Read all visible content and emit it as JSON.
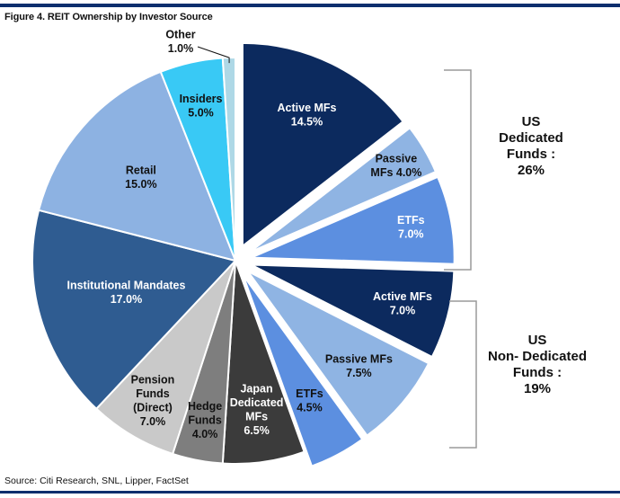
{
  "figure": {
    "title": "Figure 4. REIT Ownership by Investor Source",
    "source": "Source: Citi Research, SNL, Lipper, FactSet"
  },
  "chart_data": {
    "type": "pie",
    "title": "Figure 4. REIT Ownership by Investor Source",
    "unit": "%",
    "slices": [
      {
        "label": "Active MFs",
        "value": 14.5,
        "display": "14.5%",
        "color": "#0c2a5e",
        "text_color": "#ffffff",
        "exploded": true
      },
      {
        "label": "Passive MFs",
        "value": 4.0,
        "display": "4.0%",
        "color": "#8fb4e3",
        "text_color": "#111111",
        "exploded": true
      },
      {
        "label": "ETFs",
        "value": 7.0,
        "display": "7.0%",
        "color": "#5c8fe0",
        "text_color": "#ffffff",
        "exploded": true
      },
      {
        "label": "Active MFs",
        "value": 7.0,
        "display": "7.0%",
        "color": "#0c2a5e",
        "text_color": "#ffffff",
        "exploded": true
      },
      {
        "label": "Passive MFs",
        "value": 7.5,
        "display": "7.5%",
        "color": "#8fb4e3",
        "text_color": "#111111",
        "exploded": true
      },
      {
        "label": "ETFs",
        "value": 4.5,
        "display": "4.5%",
        "color": "#5c8fe0",
        "text_color": "#111111",
        "exploded": true
      },
      {
        "label": "Japan Dedicated MFs",
        "value": 6.5,
        "display": "6.5%",
        "color": "#3b3b3b",
        "text_color": "#ffffff",
        "exploded": false
      },
      {
        "label": "Hedge Funds",
        "value": 4.0,
        "display": "4.0%",
        "color": "#7e7e7e",
        "text_color": "#111111",
        "exploded": false
      },
      {
        "label": "Pension Funds (Direct)",
        "value": 7.0,
        "display": "7.0%",
        "color": "#c9c9c9",
        "text_color": "#111111",
        "exploded": false
      },
      {
        "label": "Institutional Mandates",
        "value": 17.0,
        "display": "17.0%",
        "color": "#2f5c91",
        "text_color": "#ffffff",
        "exploded": false
      },
      {
        "label": "Retail",
        "value": 15.0,
        "display": "15.0%",
        "color": "#8db2e2",
        "text_color": "#111111",
        "exploded": false
      },
      {
        "label": "Insiders",
        "value": 5.0,
        "display": "5.0%",
        "color": "#39c9f5",
        "text_color": "#111111",
        "exploded": false
      },
      {
        "label": "Other",
        "value": 1.0,
        "display": "1.0%",
        "color": "#aed8e6",
        "text_color": "#111111",
        "exploded": false
      }
    ],
    "groups": [
      {
        "label": "US Dedicated Funds : 26%",
        "slices": [
          0,
          1,
          2
        ]
      },
      {
        "label": "US Non- Dedicated Funds : 19%",
        "slices": [
          3,
          4,
          5
        ]
      }
    ]
  }
}
